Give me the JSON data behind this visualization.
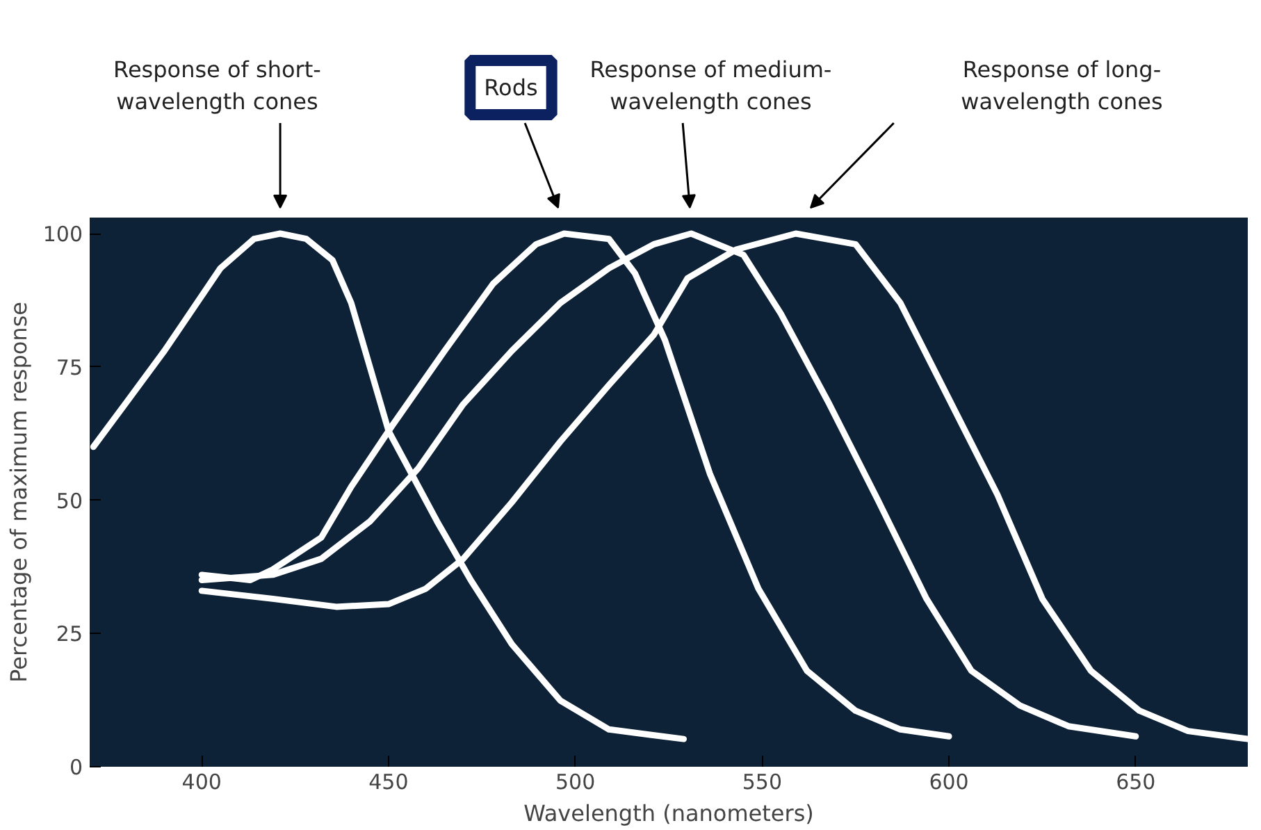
{
  "chart_data": {
    "type": "line",
    "xlabel": "Wavelength (nanometers)",
    "ylabel": "Percentage of maximum response",
    "xlim": [
      370,
      680
    ],
    "ylim": [
      0,
      103
    ],
    "xticks": [
      400,
      450,
      500,
      550,
      600,
      650
    ],
    "yticks": [
      0,
      25,
      50,
      75,
      100
    ],
    "grid": false,
    "marker": "none",
    "line_style": "solid",
    "series": [
      {
        "color": "#ffffff",
        "x": [
          371,
          380,
          390,
          405,
          414,
          421,
          428,
          435,
          440,
          450,
          463,
          472,
          483,
          496,
          509,
          520,
          529
        ],
        "values": [
          60,
          68.5,
          78,
          93.5,
          99,
          100,
          99,
          95,
          87,
          63,
          46,
          35,
          23,
          12.4,
          7,
          6,
          5.2
        ]
      },
      {
        "color": "#ffffff",
        "x": [
          400,
          413,
          419,
          432,
          440,
          451,
          465,
          478,
          489.5,
          497,
          509,
          516,
          524,
          536,
          549,
          562,
          575,
          587,
          600
        ],
        "values": [
          36,
          35,
          37,
          43,
          52.5,
          64,
          78,
          90.6,
          98,
          100,
          99,
          92.5,
          80,
          55,
          33.4,
          18,
          10.5,
          7,
          5.7
        ]
      },
      {
        "color": "#ffffff",
        "x": [
          400,
          419,
          432,
          445,
          458,
          470,
          483,
          496,
          509,
          521,
          531,
          545,
          555,
          568,
          581,
          594,
          606,
          619,
          632,
          650
        ],
        "values": [
          35,
          36,
          39,
          46,
          56,
          68,
          78,
          87,
          93.5,
          98,
          100,
          96,
          85,
          68,
          50,
          31.5,
          18,
          11.5,
          7.6,
          5.7
        ]
      },
      {
        "color": "#ffffff",
        "x": [
          400,
          419,
          436,
          450,
          460,
          470,
          483,
          496,
          509,
          521,
          530,
          543,
          559,
          575,
          587,
          600,
          613,
          625,
          638,
          651,
          664,
          680
        ],
        "values": [
          33,
          31.5,
          30,
          30.5,
          33.4,
          39,
          49.6,
          61,
          71.6,
          81,
          91.6,
          97,
          100,
          98,
          87,
          69,
          51,
          31.5,
          18,
          10.5,
          6.7,
          5.2
        ]
      }
    ],
    "annotations": [
      "Response of short-\nwavelength cones",
      "Rods",
      "Response of medium-\nwavelength cones",
      "Response of long-\nwavelength cones"
    ]
  }
}
